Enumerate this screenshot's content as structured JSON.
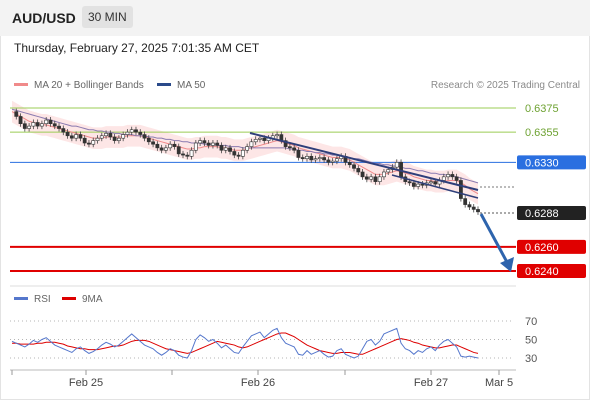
{
  "header": {
    "symbol": "AUD/USD",
    "timeframe": "30 MIN"
  },
  "datetime": "Thursday, February 27, 2025 7:01:35 AM CET",
  "legend": [
    {
      "label": "MA 20 + Bollinger Bands",
      "color": "#f08a8a"
    },
    {
      "label": "MA 50",
      "color": "#2a4a8a"
    }
  ],
  "research": "Research © 2025 Trading Central",
  "rsi_legend": [
    {
      "label": "RSI",
      "color": "#5577cc"
    },
    {
      "label": "9MA",
      "color": "#dd0000"
    }
  ],
  "chart_data": [
    {
      "type": "candlestick",
      "title": "AUD/USD 30 MIN",
      "x_ticks": [
        "Feb 25",
        "Feb 26",
        "Feb 27",
        "Mar 5"
      ],
      "close_series": [
        0.6372,
        0.6368,
        0.6362,
        0.6358,
        0.636,
        0.6363,
        0.636,
        0.6362,
        0.6365,
        0.6362,
        0.636,
        0.6358,
        0.6355,
        0.6352,
        0.635,
        0.6353,
        0.635,
        0.6346,
        0.6345,
        0.6348,
        0.635,
        0.6352,
        0.6354,
        0.6351,
        0.6348,
        0.635,
        0.6353,
        0.6355,
        0.6357,
        0.6355,
        0.6353,
        0.635,
        0.6347,
        0.6345,
        0.6342,
        0.634,
        0.6342,
        0.6345,
        0.6343,
        0.6337,
        0.6336,
        0.6335,
        0.634,
        0.6346,
        0.6348,
        0.6346,
        0.6344,
        0.6346,
        0.6344,
        0.634,
        0.6342,
        0.6339,
        0.6336,
        0.6335,
        0.634,
        0.6343,
        0.6347,
        0.6349,
        0.635,
        0.6348,
        0.635,
        0.6352,
        0.6353,
        0.6348,
        0.6343,
        0.6342,
        0.634,
        0.6334,
        0.6333,
        0.6335,
        0.6332,
        0.6333,
        0.6334,
        0.6332,
        0.633,
        0.6331,
        0.6333,
        0.6335,
        0.633,
        0.6328,
        0.6325,
        0.6322,
        0.6318,
        0.6316,
        0.6318,
        0.6314,
        0.6318,
        0.6322,
        0.6324,
        0.6326,
        0.633,
        0.6318,
        0.6314,
        0.6313,
        0.631,
        0.6312,
        0.6311,
        0.6313,
        0.6314,
        0.6312,
        0.6315,
        0.6318,
        0.632,
        0.6318,
        0.6315,
        0.63,
        0.6295,
        0.6293,
        0.6291,
        0.6289
      ],
      "ma20": [
        0.6372,
        0.637,
        0.6368,
        0.6366,
        0.6364,
        0.6363,
        0.6362,
        0.6361,
        0.6361,
        0.636,
        0.6359,
        0.6358,
        0.6357,
        0.6356,
        0.6355,
        0.6354,
        0.6353,
        0.6352,
        0.6351,
        0.635,
        0.635,
        0.635,
        0.6351,
        0.6351,
        0.6351,
        0.6351,
        0.6351,
        0.6352,
        0.6352,
        0.6352,
        0.6352,
        0.6351,
        0.635,
        0.6349,
        0.6348,
        0.6347,
        0.6346,
        0.6345,
        0.6344,
        0.6343,
        0.6342,
        0.6341,
        0.6341,
        0.6342,
        0.6342,
        0.6343,
        0.6343,
        0.6343,
        0.6343,
        0.6342,
        0.6342,
        0.6341,
        0.634,
        0.634,
        0.634,
        0.6341,
        0.6342,
        0.6343,
        0.6344,
        0.6345,
        0.6346,
        0.6347,
        0.6348,
        0.6347,
        0.6346,
        0.6345,
        0.6344,
        0.6342,
        0.6341,
        0.634,
        0.6339,
        0.6338,
        0.6337,
        0.6336,
        0.6335,
        0.6334,
        0.6334,
        0.6334,
        0.6333,
        0.6332,
        0.633,
        0.6328,
        0.6326,
        0.6324,
        0.6322,
        0.632,
        0.632,
        0.632,
        0.6321,
        0.6322,
        0.6323,
        0.6322,
        0.6321,
        0.632,
        0.6318,
        0.6317,
        0.6316,
        0.6315,
        0.6315,
        0.6314,
        0.6314,
        0.6314,
        0.6315,
        0.6315,
        0.6315,
        0.6313,
        0.6311,
        0.6308,
        0.6306,
        0.6304
      ],
      "ma50": [
        0.6374,
        0.6373,
        0.6372,
        0.6371,
        0.637,
        0.6369,
        0.6368,
        0.6367,
        0.6366,
        0.6365,
        0.6364,
        0.6363,
        0.6362,
        0.6361,
        0.636,
        0.636,
        0.6359,
        0.6358,
        0.6357,
        0.6357,
        0.6356,
        0.6356,
        0.6355,
        0.6355,
        0.6354,
        0.6354,
        0.6353,
        0.6353,
        0.6353,
        0.6352,
        0.6352,
        0.6352,
        0.6351,
        0.6351,
        0.635,
        0.635,
        0.6349,
        0.6349,
        0.6348,
        0.6348,
        0.6347,
        0.6347,
        0.6346,
        0.6346,
        0.6346,
        0.6345,
        0.6345,
        0.6345,
        0.6344,
        0.6344,
        0.6344,
        0.6343,
        0.6343,
        0.6343,
        0.6342,
        0.6342,
        0.6342,
        0.6342,
        0.6342,
        0.6342,
        0.6342,
        0.6342,
        0.6342,
        0.6342,
        0.6342,
        0.6341,
        0.6341,
        0.634,
        0.634,
        0.6339,
        0.6339,
        0.6338,
        0.6338,
        0.6337,
        0.6337,
        0.6336,
        0.6336,
        0.6335,
        0.6335,
        0.6334,
        0.6333,
        0.6333,
        0.6332,
        0.6331,
        0.633,
        0.6329,
        0.6329,
        0.6328,
        0.6328,
        0.6327,
        0.6327,
        0.6326,
        0.6325,
        0.6325,
        0.6324,
        0.6323,
        0.6323,
        0.6322,
        0.6321,
        0.6321,
        0.632,
        0.632,
        0.6319,
        0.6319,
        0.6318,
        0.6317,
        0.6316,
        0.6315,
        0.6314,
        0.6313
      ],
      "bollinger_width": 0.0009,
      "levels": [
        {
          "value": 0.6375,
          "label": "0.6375",
          "color": "#9bcc55",
          "style": "resistance"
        },
        {
          "value": 0.6355,
          "label": "0.6355",
          "color": "#9bcc55",
          "style": "resistance"
        },
        {
          "value": 0.633,
          "label": "0.6330",
          "color": "#2a6fe0",
          "style": "pivot"
        },
        {
          "value": 0.6288,
          "label": "0.6288",
          "color": "#222222",
          "style": "last"
        },
        {
          "value": 0.626,
          "label": "0.6260",
          "color": "#e00000",
          "style": "target"
        },
        {
          "value": 0.624,
          "label": "0.6240",
          "color": "#e00000",
          "style": "target"
        }
      ]
    },
    {
      "type": "line",
      "title": "RSI",
      "y_ticks": [
        70,
        50,
        30
      ],
      "rsi": [
        48,
        46,
        44,
        42,
        45,
        49,
        47,
        50,
        52,
        48,
        44,
        42,
        40,
        38,
        36,
        40,
        42,
        38,
        35,
        37,
        40,
        44,
        47,
        45,
        42,
        44,
        48,
        52,
        56,
        52,
        48,
        44,
        42,
        40,
        36,
        33,
        36,
        40,
        38,
        33,
        31,
        30,
        38,
        50,
        55,
        52,
        48,
        50,
        46,
        41,
        44,
        40,
        36,
        35,
        42,
        48,
        54,
        56,
        58,
        52,
        56,
        60,
        62,
        52,
        46,
        44,
        42,
        34,
        33,
        38,
        34,
        36,
        38,
        34,
        31,
        32,
        38,
        40,
        34,
        32,
        30,
        32,
        40,
        48,
        50,
        44,
        48,
        56,
        58,
        60,
        62,
        46,
        40,
        38,
        34,
        38,
        36,
        40,
        42,
        38,
        44,
        48,
        50,
        46,
        42,
        32,
        31,
        32,
        31,
        30
      ],
      "ma9": [
        46,
        46,
        45,
        45,
        45,
        45,
        46,
        46,
        47,
        47,
        47,
        46,
        45,
        43,
        42,
        41,
        40,
        40,
        39,
        39,
        39,
        40,
        41,
        42,
        43,
        43,
        44,
        46,
        48,
        49,
        49,
        49,
        48,
        46,
        44,
        42,
        40,
        39,
        38,
        37,
        36,
        35,
        36,
        38,
        40,
        42,
        44,
        46,
        48,
        47,
        46,
        45,
        44,
        42,
        41,
        42,
        44,
        46,
        48,
        50,
        52,
        54,
        56,
        57,
        57,
        55,
        53,
        50,
        47,
        44,
        42,
        40,
        38,
        37,
        36,
        35,
        35,
        36,
        36,
        36,
        35,
        34,
        34,
        36,
        38,
        40,
        42,
        44,
        46,
        48,
        50,
        51,
        50,
        49,
        47,
        46,
        44,
        43,
        42,
        41,
        41,
        42,
        43,
        44,
        44,
        42,
        40,
        38,
        36,
        35
      ]
    }
  ]
}
